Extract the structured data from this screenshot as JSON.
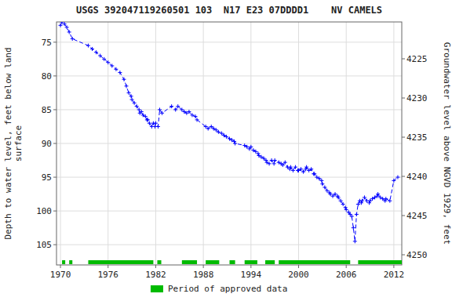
{
  "chart_data": {
    "type": "line",
    "title": "USGS 392047119260501 103  N17 E23 07DDDD1    NV CAMELS",
    "ylabel": "Depth to water level, feet below land\nsurface",
    "y2label": "Groundwater level above NGVD 1929, feet",
    "xlim": [
      1969.5,
      2013.0
    ],
    "xticks": [
      1970,
      1976,
      1982,
      1988,
      1994,
      2000,
      2006,
      2012
    ],
    "ylim": [
      108,
      72
    ],
    "yticks": [
      75,
      80,
      85,
      90,
      95,
      100,
      105
    ],
    "y2lim": [
      4251.3,
      4220.3
    ],
    "y2ticks": [
      4225,
      4230,
      4235,
      4240,
      4245,
      4250
    ],
    "grid": true,
    "legend": "bottom",
    "x": [
      1970.0,
      1970.2,
      1970.5,
      1970.8,
      1971.1,
      1971.5,
      1973.5,
      1974.0,
      1974.5,
      1975.0,
      1975.5,
      1976.0,
      1976.5,
      1977.0,
      1977.5,
      1978.0,
      1978.3,
      1978.6,
      1978.9,
      1979.0,
      1979.3,
      1979.6,
      1979.9,
      1980.0,
      1980.2,
      1980.4,
      1980.7,
      1980.9,
      1981.0,
      1981.2,
      1981.5,
      1981.7,
      1981.9,
      1982.0,
      1982.3,
      1982.5,
      1982.8,
      1984.0,
      1984.5,
      1984.8,
      1985.3,
      1985.6,
      1985.9,
      1986.2,
      1986.6,
      1987.0,
      1987.2,
      1988.3,
      1988.6,
      1989.0,
      1989.3,
      1989.6,
      1989.9,
      1990.3,
      1990.6,
      1990.9,
      1991.3,
      1991.6,
      1991.9,
      1992.0,
      1993.2,
      1993.5,
      1993.8,
      1994.0,
      1994.3,
      1994.6,
      1994.9,
      1995.0,
      1995.3,
      1995.6,
      1995.9,
      1996.0,
      1996.3,
      1996.6,
      1996.9,
      1997.0,
      1997.5,
      1997.8,
      1998.0,
      1998.3,
      1998.6,
      1998.9,
      1999.0,
      1999.3,
      1999.6,
      1999.9,
      2000.0,
      2000.3,
      2000.6,
      2000.9,
      2001.0,
      2001.3,
      2001.6,
      2001.9,
      2002.0,
      2002.3,
      2002.6,
      2002.9,
      2003.0,
      2003.3,
      2003.6,
      2003.9,
      2004.0,
      2004.3,
      2004.6,
      2004.9,
      2005.0,
      2005.3,
      2005.6,
      2005.9,
      2006.0,
      2006.3,
      2006.5,
      2006.7,
      2006.9,
      2007.1,
      2007.3,
      2007.5,
      2007.7,
      2007.9,
      2008.0,
      2008.3,
      2008.6,
      2008.9,
      2009.0,
      2009.3,
      2009.6,
      2009.9,
      2010.0,
      2010.3,
      2010.6,
      2010.9,
      2011.0,
      2011.5,
      2012.0,
      2012.5
    ],
    "series": [
      {
        "color": "#0000ff",
        "marker": "plus",
        "line_style": "dashed",
        "values": [
          72.5,
          72.0,
          72.3,
          72.8,
          73.5,
          74.5,
          75.5,
          76.0,
          76.5,
          77.0,
          77.5,
          78.0,
          78.5,
          79.0,
          79.5,
          80.5,
          81.5,
          82.5,
          83.0,
          83.5,
          84.0,
          84.5,
          85.0,
          85.5,
          85.3,
          85.8,
          86.0,
          86.5,
          86.5,
          87.0,
          87.5,
          87.0,
          87.5,
          87.0,
          87.5,
          85.0,
          85.5,
          84.5,
          85.0,
          84.5,
          85.0,
          85.3,
          85.5,
          85.3,
          85.8,
          86.0,
          86.5,
          87.5,
          87.8,
          87.5,
          87.8,
          88.0,
          88.3,
          88.5,
          88.8,
          89.0,
          89.3,
          89.5,
          89.7,
          90.0,
          90.3,
          90.5,
          90.8,
          90.5,
          91.0,
          91.2,
          91.5,
          91.8,
          92.0,
          92.2,
          92.5,
          92.8,
          93.0,
          92.5,
          93.0,
          92.5,
          92.8,
          93.0,
          93.2,
          92.8,
          93.5,
          93.8,
          93.5,
          94.0,
          93.5,
          94.0,
          94.0,
          93.8,
          94.2,
          93.8,
          93.5,
          94.0,
          93.8,
          94.5,
          94.5,
          95.0,
          95.2,
          95.5,
          96.0,
          96.5,
          97.0,
          97.3,
          97.5,
          97.8,
          97.5,
          97.8,
          98.0,
          98.5,
          99.0,
          99.5,
          99.8,
          100.2,
          100.5,
          100.8,
          102.5,
          104.5,
          100.5,
          99.0,
          98.5,
          98.8,
          98.5,
          98.0,
          98.5,
          98.8,
          98.5,
          98.2,
          98.0,
          97.8,
          97.5,
          98.0,
          98.2,
          98.5,
          98.2,
          98.5,
          95.5,
          95.0
        ]
      },
      {
        "type": "range",
        "name": "Period of approved data",
        "color": "#00bb00",
        "ranges": [
          [
            1970.2,
            1970.6
          ],
          [
            1971.1,
            1971.5
          ],
          [
            1973.5,
            1981.7
          ],
          [
            1982.2,
            1982.7
          ],
          [
            1985.3,
            1987.2
          ],
          [
            1988.3,
            1990.0
          ],
          [
            1991.3,
            1992.0
          ],
          [
            1993.2,
            1994.8
          ],
          [
            1995.8,
            1997.0
          ],
          [
            1997.5,
            2006.5
          ],
          [
            2007.5,
            2013.0
          ]
        ]
      }
    ]
  }
}
